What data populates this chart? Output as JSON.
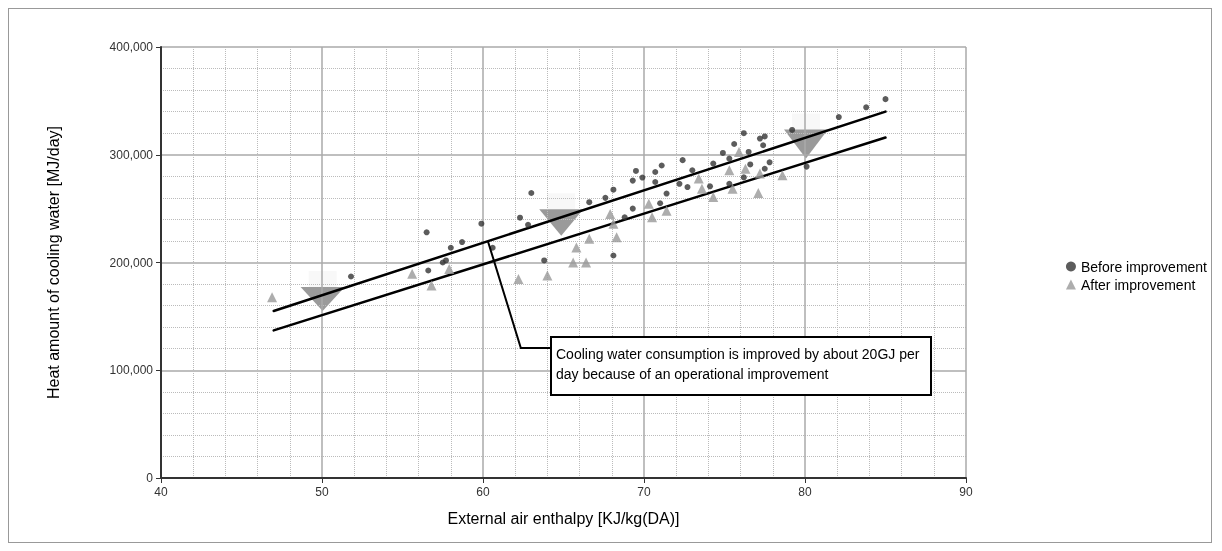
{
  "chart_data": {
    "type": "scatter",
    "xlabel": "External air enthalpy [KJ/kg(DA)]",
    "ylabel": "Heat amount of cooling water [MJ/day]",
    "xlim": [
      40,
      90
    ],
    "xticks": [
      40,
      50,
      60,
      70,
      80,
      90
    ],
    "ylim": [
      0,
      400000
    ],
    "yticks": [
      {
        "value": 0,
        "label": "0"
      },
      {
        "value": 100000,
        "label": "100,000"
      },
      {
        "value": 200000,
        "label": "200,000"
      },
      {
        "value": 300000,
        "label": "300,000"
      },
      {
        "value": 400000,
        "label": "400,000"
      }
    ],
    "grid": true,
    "legend": "right",
    "annotations": [
      {
        "text": "Cooling water consumption is improved by about 20GJ per day because of an operational improvement",
        "x": 60.3,
        "y": 220000
      }
    ],
    "series": [
      {
        "name": "Before improvement",
        "color": "#333333",
        "marker": "circle",
        "x": [
          51.8,
          56.6,
          57.5,
          57.7,
          58.7,
          58.0,
          56.5,
          59.9,
          60.6,
          63.0,
          62.3,
          62.8,
          63.8,
          66.6,
          68.1,
          67.6,
          69.3,
          69.5,
          69.9,
          70.7,
          71.1,
          70.7,
          71.4,
          71.0,
          69.3,
          68.8,
          72.2,
          72.7,
          72.4,
          73.0,
          74.3,
          74.9,
          75.3,
          75.6,
          76.2,
          76.5,
          77.2,
          77.5,
          77.4,
          76.6,
          77.8,
          77.5,
          76.2,
          75.3,
          74.1,
          79.2,
          80.1,
          82.1,
          83.8,
          85.0,
          68.1
        ],
        "values": [
          187000,
          192600,
          200000,
          201900,
          219000,
          213700,
          228000,
          236000,
          213700,
          264500,
          241600,
          235000,
          201900,
          256000,
          267600,
          260000,
          276000,
          285000,
          278800,
          284000,
          290000,
          274700,
          264000,
          255000,
          250000,
          242000,
          273000,
          270000,
          295000,
          285600,
          291800,
          301700,
          296400,
          310000,
          320000,
          302600,
          315000,
          317000,
          308800,
          291000,
          293000,
          287000,
          279000,
          273000,
          270700,
          323000,
          289000,
          335000,
          344000,
          351600,
          206500
        ]
      },
      {
        "name": "After improvement",
        "color": "#999999",
        "marker": "triangle",
        "x": [
          46.9,
          55.6,
          56.8,
          57.9,
          62.2,
          64.0,
          65.6,
          66.4,
          65.8,
          66.6,
          68.3,
          68.1,
          67.9,
          70.5,
          71.4,
          70.3,
          73.6,
          74.3,
          75.5,
          75.9,
          75.3,
          76.3,
          77.1,
          77.2,
          78.6,
          73.4
        ],
        "values": [
          167700,
          189500,
          178600,
          194000,
          184800,
          188000,
          200000,
          200000,
          214000,
          222000,
          223500,
          236000,
          245000,
          242000,
          248000,
          254600,
          268500,
          260700,
          268500,
          302600,
          285600,
          287000,
          264500,
          282500,
          281000,
          278000
        ]
      },
      {
        "type": "line",
        "color": "#000000",
        "marker": "none",
        "x": [
          47,
          85
        ],
        "values": [
          155000,
          340000
        ]
      },
      {
        "type": "line",
        "color": "#000000",
        "marker": "none",
        "x": [
          47,
          85
        ],
        "values": [
          137000,
          316000
        ]
      }
    ]
  }
}
